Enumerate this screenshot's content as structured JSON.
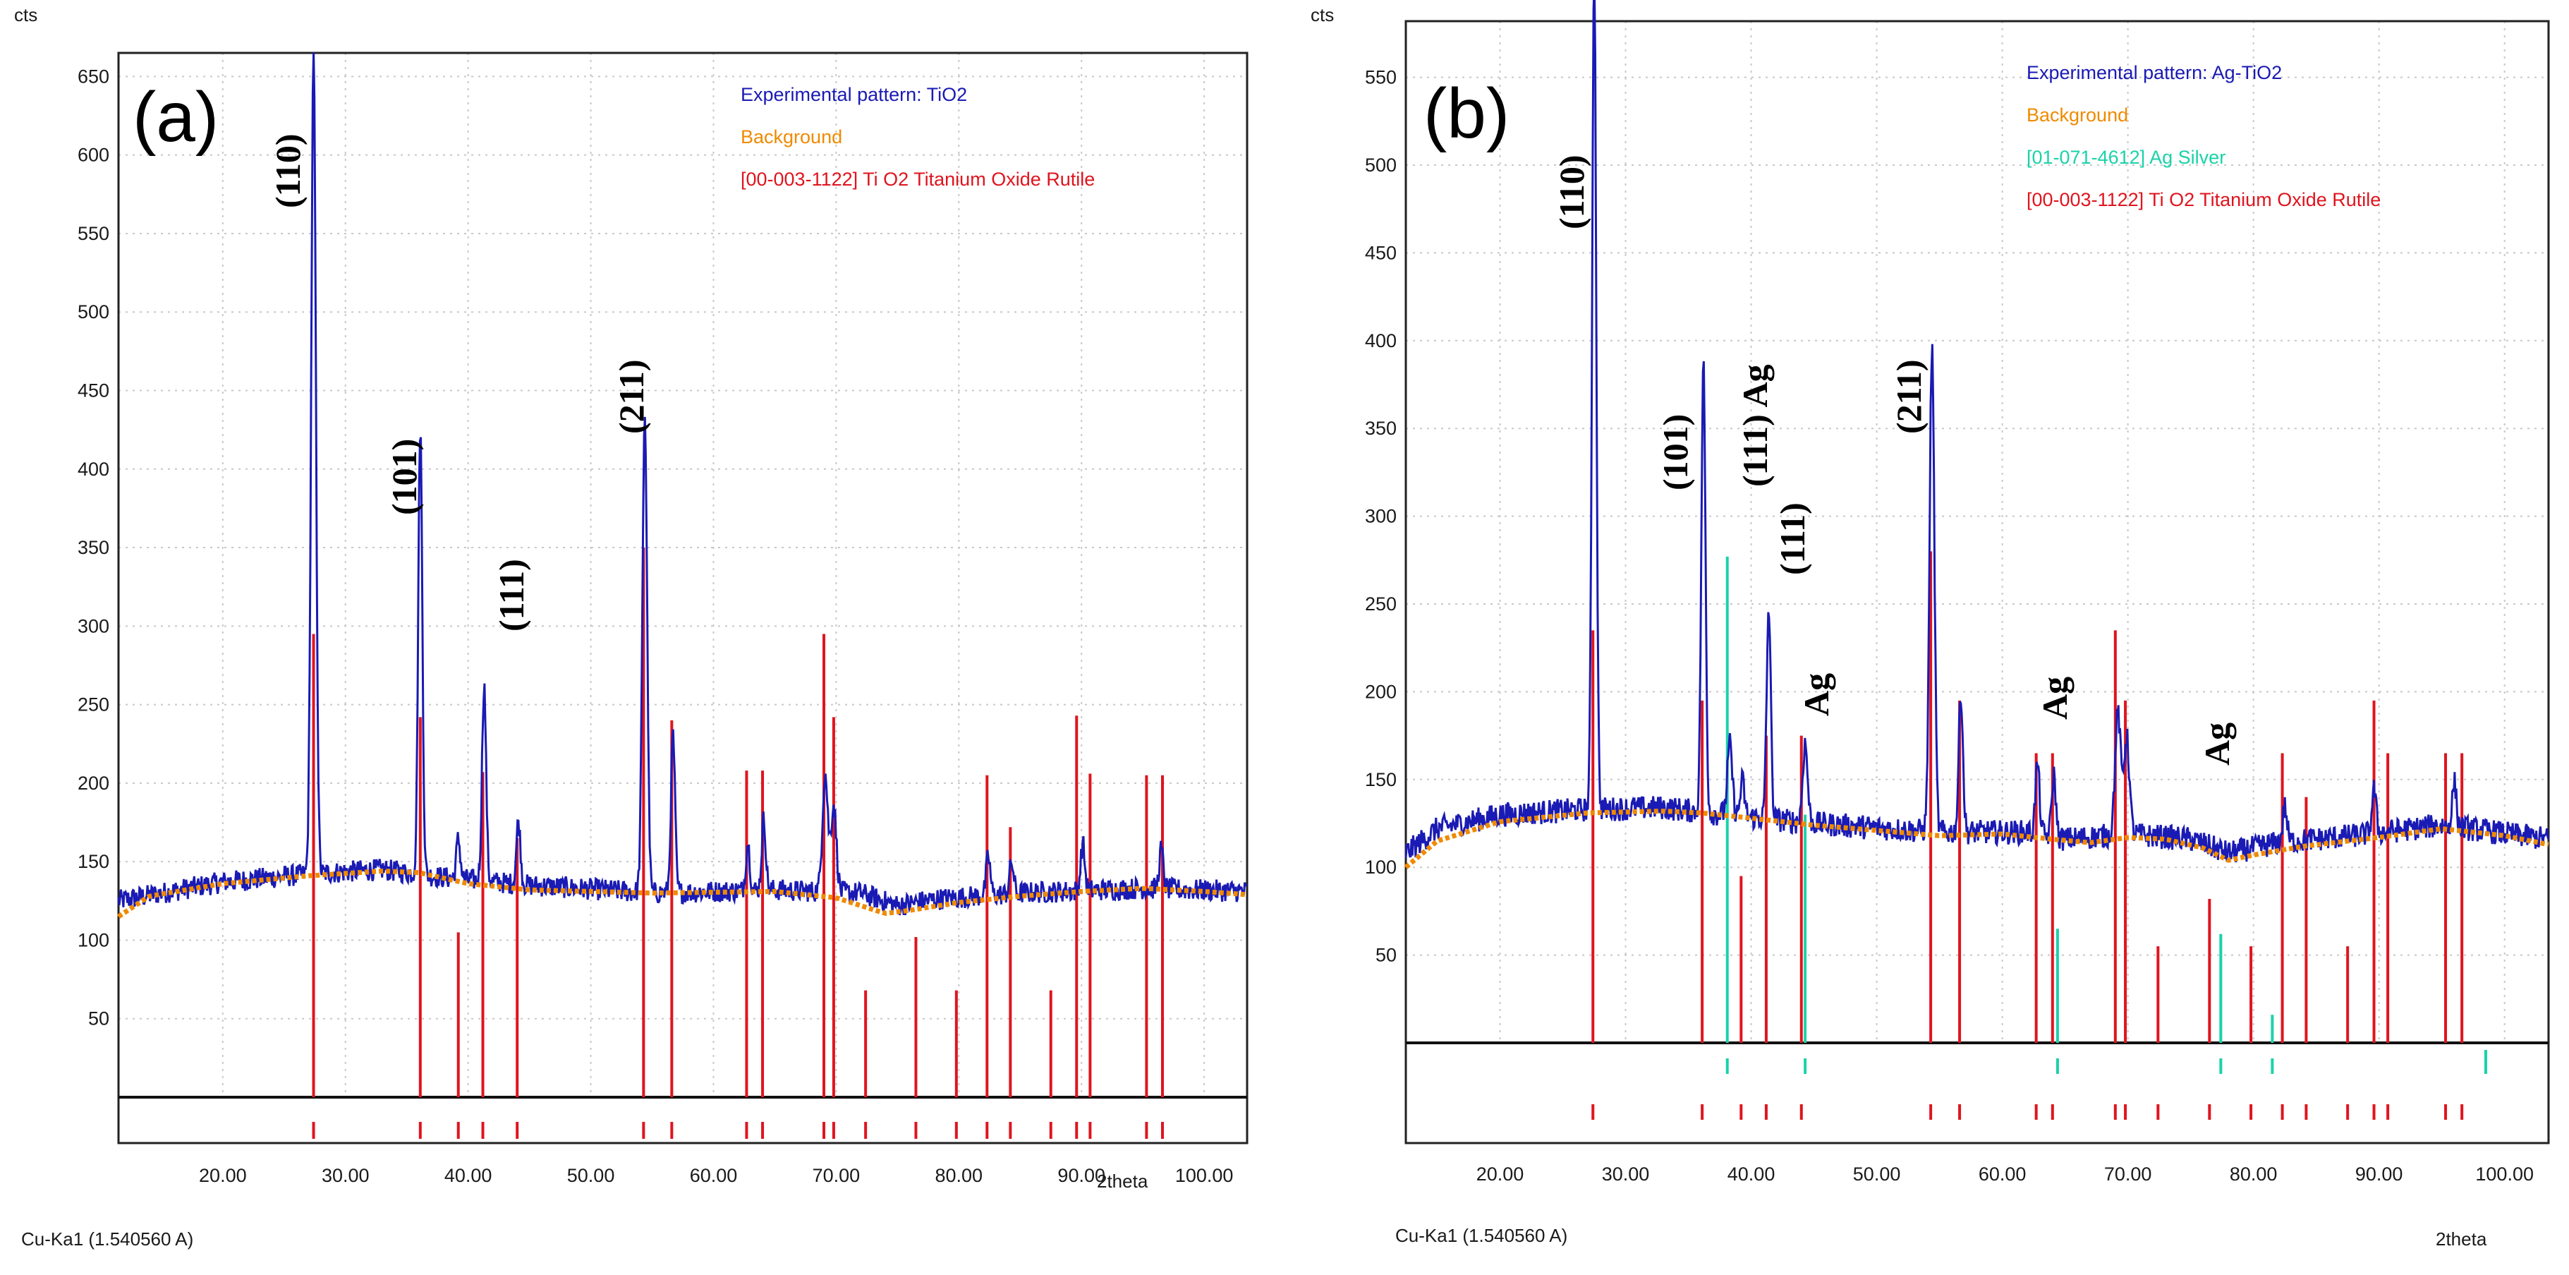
{
  "chart_data": [
    {
      "type": "line",
      "panel_label": "(a)",
      "ylabel": "cts",
      "xlabel": "2theta",
      "wavelength_label": "Cu-Ka1 (1.540560 A)",
      "xlim": [
        11.5,
        103.5
      ],
      "ylim": [
        0,
        665
      ],
      "x_ticks": [
        "20.00",
        "30.00",
        "40.00",
        "50.00",
        "60.00",
        "70.00",
        "80.00",
        "90.00",
        "100.00"
      ],
      "x_tick_values": [
        20,
        30,
        40,
        50,
        60,
        70,
        80,
        90,
        100
      ],
      "y_ticks": [
        "50",
        "100",
        "150",
        "200",
        "250",
        "300",
        "350",
        "400",
        "450",
        "500",
        "550",
        "600",
        "650"
      ],
      "y_tick_values": [
        50,
        100,
        150,
        200,
        250,
        300,
        350,
        400,
        450,
        500,
        550,
        600,
        650
      ],
      "legend": [
        {
          "text": "Experimental pattern: TiO2",
          "color": "#1a1ab4"
        },
        {
          "text": "Background",
          "color": "#f08a00"
        },
        {
          "text": "[00-003-1122] Ti O2 Titanium Oxide Rutile",
          "color": "#e0141e"
        }
      ],
      "series": [
        {
          "name": "Experimental pattern: TiO2",
          "color": "#1a1ab4",
          "baseline": [
            [
              11.5,
              125
            ],
            [
              20,
              137
            ],
            [
              27,
              142
            ],
            [
              33,
              145
            ],
            [
              38,
              140
            ],
            [
              45,
              135
            ],
            [
              55,
              130
            ],
            [
              65,
              132
            ],
            [
              72,
              130
            ],
            [
              75,
              122
            ],
            [
              78,
              126
            ],
            [
              85,
              130
            ],
            [
              95,
              133
            ],
            [
              103.5,
              131
            ]
          ],
          "peaks": [
            [
              27.4,
              520,
              0.35
            ],
            [
              36.1,
              285,
              0.3
            ],
            [
              39.2,
              25,
              0.3
            ],
            [
              41.3,
              125,
              0.3
            ],
            [
              44.1,
              40,
              0.3
            ],
            [
              54.4,
              305,
              0.35
            ],
            [
              56.7,
              100,
              0.3
            ],
            [
              62.8,
              30,
              0.3
            ],
            [
              64.1,
              45,
              0.3
            ],
            [
              69.1,
              75,
              0.4
            ],
            [
              69.8,
              55,
              0.4
            ],
            [
              82.4,
              25,
              0.3
            ],
            [
              84.3,
              20,
              0.3
            ],
            [
              90.1,
              30,
              0.3
            ],
            [
              96.5,
              25,
              0.3
            ]
          ],
          "noise": 7
        },
        {
          "name": "Background",
          "color": "#f08a00",
          "points": [
            [
              11.5,
              115
            ],
            [
              14,
              128
            ],
            [
              20,
              136
            ],
            [
              27,
              141
            ],
            [
              33,
              144
            ],
            [
              36,
              143
            ],
            [
              40,
              136
            ],
            [
              45,
              132
            ],
            [
              55,
              130
            ],
            [
              65,
              131
            ],
            [
              70,
              127
            ],
            [
              74,
              117
            ],
            [
              76,
              119
            ],
            [
              80,
              124
            ],
            [
              85,
              128
            ],
            [
              90,
              131
            ],
            [
              95,
              133
            ],
            [
              100,
              131
            ],
            [
              103.5,
              129
            ]
          ]
        }
      ],
      "reference_lines": [
        {
          "name": "[00-003-1122] Ti O2 Titanium Oxide Rutile",
          "color": "#e0141e",
          "positions": [
            27.4,
            36.1,
            39.2,
            41.2,
            44.0,
            54.3,
            56.6,
            62.7,
            64.0,
            69.0,
            69.8,
            72.4,
            76.5,
            79.8,
            82.3,
            84.2,
            87.5,
            89.6,
            90.7,
            95.3,
            96.6
          ],
          "intensities": [
            295,
            242,
            105,
            207,
            165,
            350,
            240,
            208,
            208,
            295,
            242,
            68,
            102,
            68,
            205,
            172,
            68,
            243,
            206,
            205,
            205
          ]
        }
      ],
      "peak_labels": [
        {
          "text": "(110)"
        },
        {
          "text": "(101)"
        },
        {
          "text": "(111)"
        },
        {
          "text": "(211)"
        }
      ]
    },
    {
      "type": "line",
      "panel_label": "(b)",
      "ylabel": "cts",
      "xlabel": "2theta",
      "wavelength_label": "Cu-Ka1 (1.540560 A)",
      "xlim": [
        12.5,
        103.5
      ],
      "ylim": [
        0,
        582
      ],
      "x_ticks": [
        "20.00",
        "30.00",
        "40.00",
        "50.00",
        "60.00",
        "70.00",
        "80.00",
        "90.00",
        "100.00"
      ],
      "x_tick_values": [
        20,
        30,
        40,
        50,
        60,
        70,
        80,
        90,
        100
      ],
      "y_ticks": [
        "50",
        "100",
        "150",
        "200",
        "250",
        "300",
        "350",
        "400",
        "450",
        "500",
        "550"
      ],
      "y_tick_values": [
        50,
        100,
        150,
        200,
        250,
        300,
        350,
        400,
        450,
        500,
        550
      ],
      "legend": [
        {
          "text": "Experimental pattern: Ag-TiO2",
          "color": "#1a1ab4"
        },
        {
          "text": "Background",
          "color": "#f08a00"
        },
        {
          "text": "[01-071-4612] Ag Silver",
          "color": "#1ad2aa"
        },
        {
          "text": "[00-003-1122] Ti O2 Titanium Oxide Rutile",
          "color": "#e0141e"
        }
      ],
      "series": [
        {
          "name": "Experimental pattern: Ag-TiO2",
          "color": "#1a1ab4",
          "baseline": [
            [
              12.5,
              108
            ],
            [
              15,
              122
            ],
            [
              20,
              130
            ],
            [
              27,
              133
            ],
            [
              33,
              134
            ],
            [
              38,
              130
            ],
            [
              45,
              125
            ],
            [
              55,
              120
            ],
            [
              62,
              120
            ],
            [
              65,
              116
            ],
            [
              70,
              119
            ],
            [
              75,
              116
            ],
            [
              78,
              108
            ],
            [
              82,
              114
            ],
            [
              88,
              118
            ],
            [
              95,
              124
            ],
            [
              103.5,
              116
            ]
          ],
          "peaks": [
            [
              27.5,
              480,
              0.3
            ],
            [
              36.2,
              255,
              0.3
            ],
            [
              38.3,
              40,
              0.35
            ],
            [
              39.3,
              20,
              0.3
            ],
            [
              41.4,
              120,
              0.3
            ],
            [
              44.3,
              45,
              0.35
            ],
            [
              54.4,
              275,
              0.35
            ],
            [
              56.7,
              80,
              0.3
            ],
            [
              62.8,
              40,
              0.3
            ],
            [
              64.1,
              35,
              0.3
            ],
            [
              69.2,
              70,
              0.4
            ],
            [
              69.9,
              55,
              0.4
            ],
            [
              82.5,
              20,
              0.3
            ],
            [
              89.6,
              25,
              0.3
            ],
            [
              96.0,
              25,
              0.3
            ]
          ],
          "noise": 7
        },
        {
          "name": "Background",
          "color": "#f08a00",
          "points": [
            [
              12.5,
              100
            ],
            [
              15,
              115
            ],
            [
              20,
              126
            ],
            [
              27,
              131
            ],
            [
              33,
              132
            ],
            [
              36,
              131
            ],
            [
              40,
              128
            ],
            [
              45,
              124
            ],
            [
              50,
              121
            ],
            [
              55,
              118
            ],
            [
              60,
              119
            ],
            [
              64,
              116
            ],
            [
              67,
              114
            ],
            [
              70,
              117
            ],
            [
              73,
              116
            ],
            [
              76,
              111
            ],
            [
              78,
              104
            ],
            [
              80,
              107
            ],
            [
              84,
              112
            ],
            [
              90,
              117
            ],
            [
              95,
              122
            ],
            [
              100,
              118
            ],
            [
              103.5,
              113
            ]
          ]
        }
      ],
      "reference_lines": [
        {
          "name": "[00-003-1122] Ti O2 Titanium Oxide Rutile",
          "color": "#e0141e",
          "positions": [
            27.4,
            36.1,
            39.2,
            41.2,
            44.0,
            54.3,
            56.6,
            62.7,
            64.0,
            69.0,
            69.8,
            72.4,
            76.5,
            79.8,
            82.3,
            84.2,
            87.5,
            89.6,
            90.7,
            95.3,
            96.6
          ],
          "intensities": [
            235,
            195,
            95,
            175,
            175,
            280,
            195,
            165,
            165,
            235,
            195,
            55,
            82,
            55,
            165,
            140,
            55,
            195,
            165,
            165,
            165
          ]
        },
        {
          "name": "[01-071-4612] Ag Silver",
          "color": "#1ad2aa",
          "positions": [
            38.1,
            44.3,
            64.4,
            77.4,
            81.5
          ],
          "intensities": [
            277,
            130,
            65,
            62,
            16
          ]
        }
      ],
      "ref_tick_row_extra": [
        {
          "positions": [
            98.5
          ],
          "color": "#1ad2aa"
        }
      ],
      "peak_labels": [
        {
          "text": "(110)"
        },
        {
          "text": "(101)"
        },
        {
          "text": "(111) Ag"
        },
        {
          "text": "(111)"
        },
        {
          "text": "Ag"
        },
        {
          "text": "(211)"
        },
        {
          "text": "Ag"
        },
        {
          "text": "Ag"
        }
      ]
    }
  ]
}
